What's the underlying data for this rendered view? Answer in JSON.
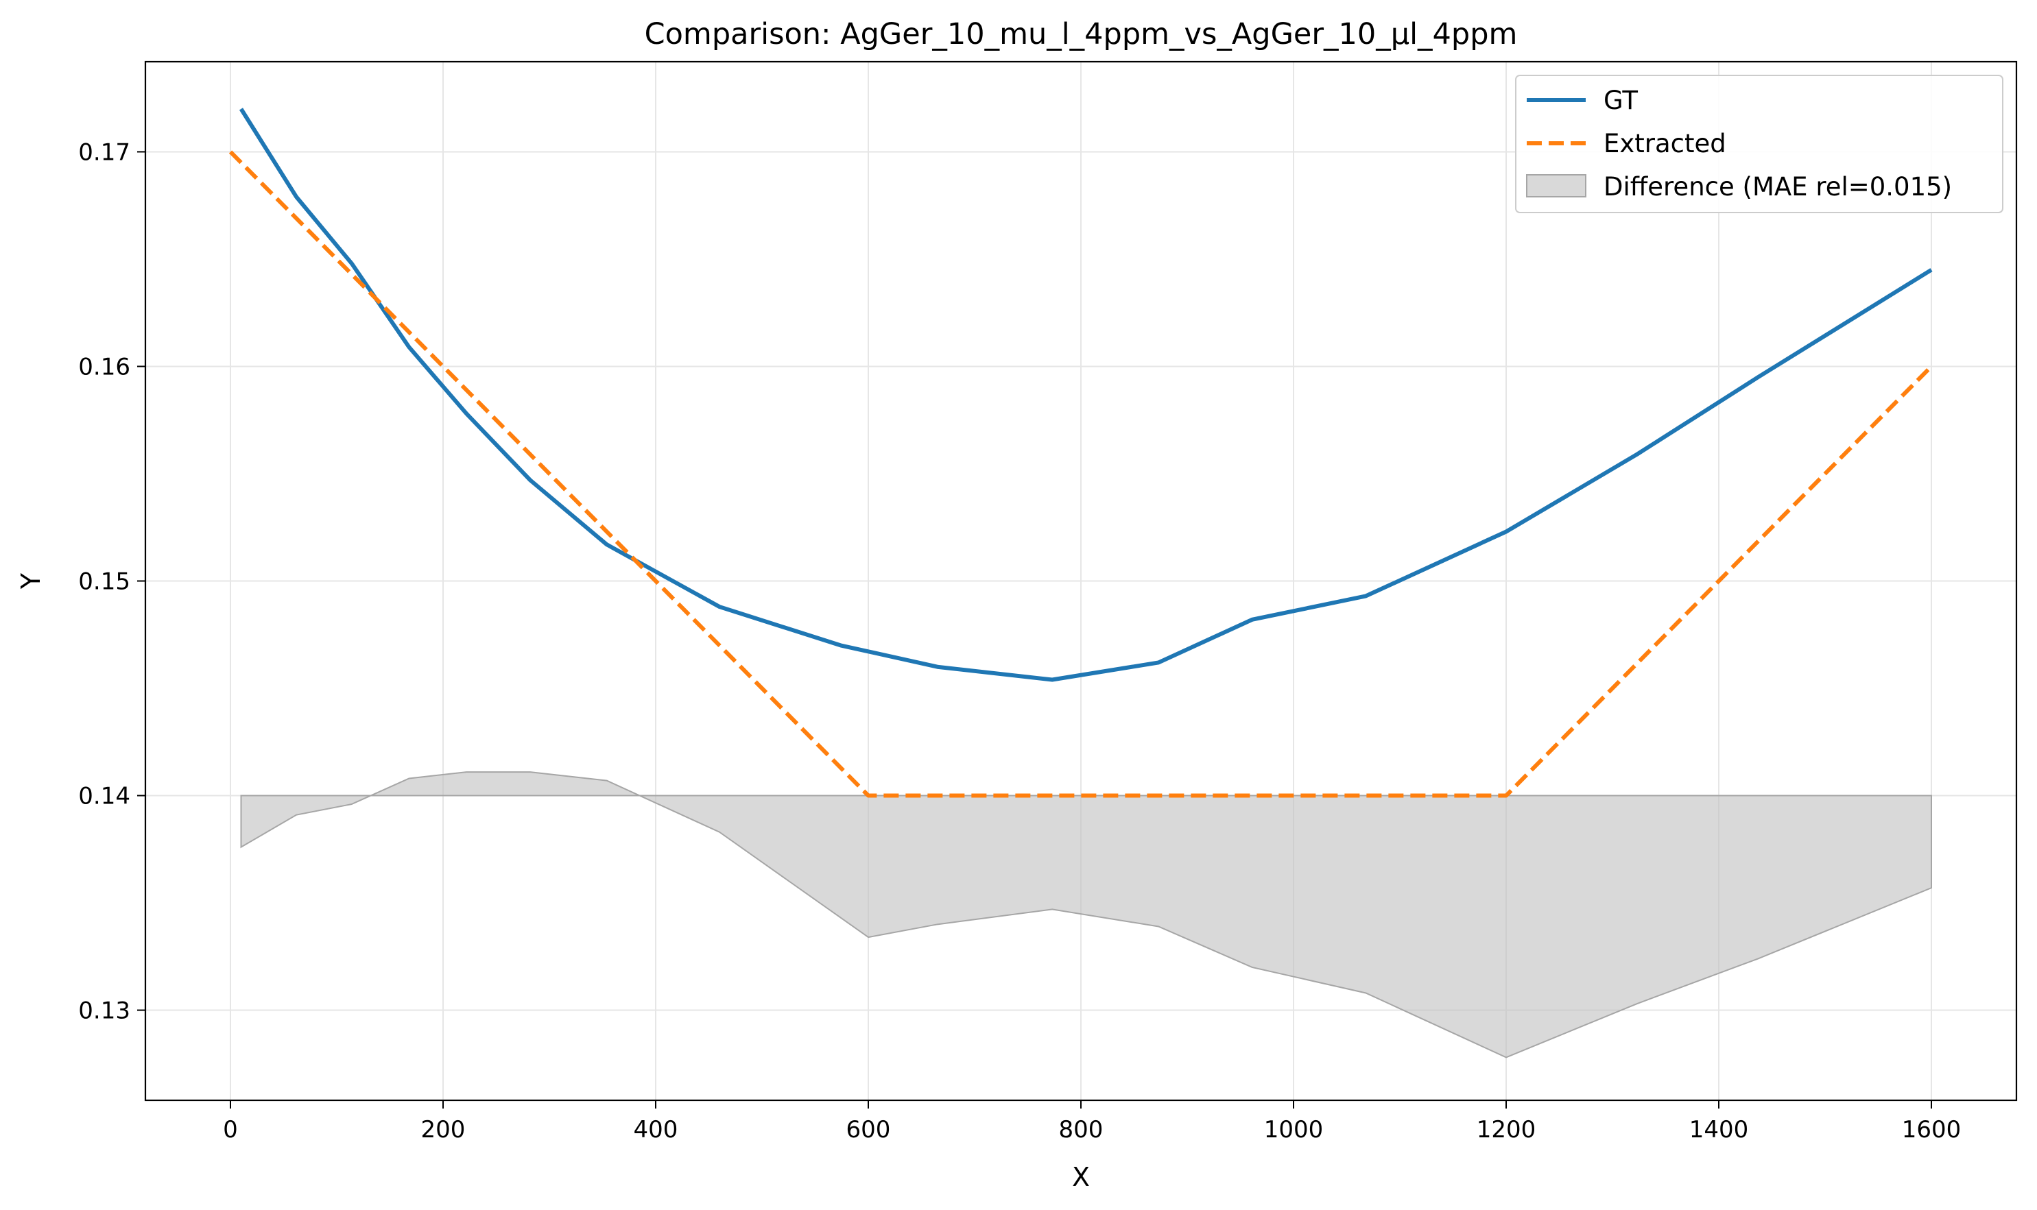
{
  "chart_data": {
    "type": "line",
    "title": "Comparison: AgGer_10_mu_l_4ppm_vs_AgGer_10_µl_4ppm",
    "xlabel": "X",
    "ylabel": "Y",
    "xlim": [
      -80,
      1680
    ],
    "ylim": [
      0.1258,
      0.1742
    ],
    "xticks": [
      "0",
      "200",
      "400",
      "600",
      "800",
      "1000",
      "1200",
      "1400",
      "1600"
    ],
    "yticks": [
      "0.13",
      "0.14",
      "0.15",
      "0.16",
      "0.17"
    ],
    "grid": true,
    "legend_position": "top-right",
    "difference_baseline": 0.14,
    "series": [
      {
        "name": "GT",
        "style": "solid",
        "color": "#1f77b4",
        "x": [
          10,
          62,
          114,
          168,
          222,
          282,
          354,
          460,
          574,
          665,
          773,
          873,
          961,
          1068,
          1200,
          1323,
          1437,
          1600
        ],
        "y": [
          0.172,
          0.1679,
          0.1648,
          0.1609,
          0.1578,
          0.1547,
          0.1517,
          0.1488,
          0.147,
          0.146,
          0.1454,
          0.1462,
          0.1482,
          0.1493,
          0.1523,
          0.1559,
          0.1595,
          0.1645
        ]
      },
      {
        "name": "Extracted",
        "style": "dashed",
        "color": "#ff7f0e",
        "x": [
          0,
          600,
          1200,
          1600
        ],
        "y": [
          0.17,
          0.14,
          0.14,
          0.16
        ]
      },
      {
        "name": "Difference (MAE rel=0.015)",
        "style": "fill",
        "color": "#bfbfbf",
        "x": [
          10,
          62,
          114,
          168,
          222,
          282,
          354,
          460,
          600,
          665,
          773,
          873,
          961,
          1068,
          1200,
          1323,
          1437,
          1600
        ],
        "y": [
          0.1376,
          0.1391,
          0.1396,
          0.1408,
          0.1411,
          0.1411,
          0.1407,
          0.1383,
          0.1334,
          0.134,
          0.1347,
          0.1339,
          0.132,
          0.1308,
          0.1278,
          0.1303,
          0.1324,
          0.1357
        ]
      }
    ]
  }
}
